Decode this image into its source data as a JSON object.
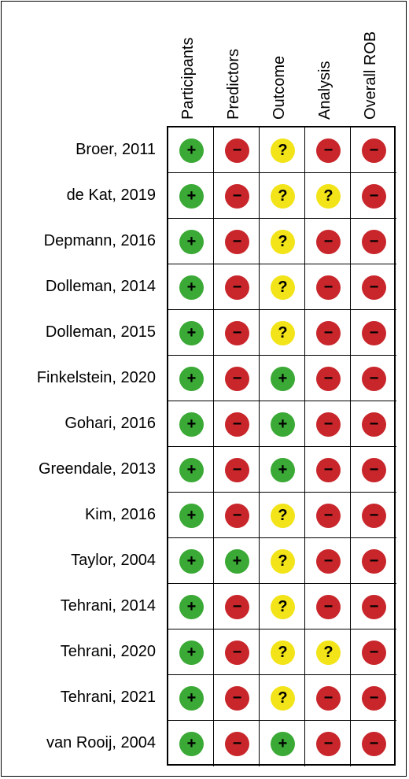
{
  "chart_data": {
    "type": "table",
    "columns": [
      "Participants",
      "Predictors",
      "Outcome",
      "Analysis",
      "Overall ROB"
    ],
    "legend_symbols": {
      "low": {
        "glyph": "+",
        "color": "#3aa935"
      },
      "high": {
        "glyph": "−",
        "color": "#c8262b"
      },
      "unclear": {
        "glyph": "?",
        "color": "#f2e418"
      }
    },
    "rows": [
      {
        "label": "Broer, 2011",
        "values": [
          "low",
          "high",
          "unclear",
          "high",
          "high"
        ]
      },
      {
        "label": "de Kat, 2019",
        "values": [
          "low",
          "high",
          "unclear",
          "unclear",
          "high"
        ]
      },
      {
        "label": "Depmann, 2016",
        "values": [
          "low",
          "high",
          "unclear",
          "high",
          "high"
        ]
      },
      {
        "label": "Dolleman, 2014",
        "values": [
          "low",
          "high",
          "unclear",
          "high",
          "high"
        ]
      },
      {
        "label": "Dolleman, 2015",
        "values": [
          "low",
          "high",
          "unclear",
          "high",
          "high"
        ]
      },
      {
        "label": "Finkelstein, 2020",
        "values": [
          "low",
          "high",
          "low",
          "high",
          "high"
        ]
      },
      {
        "label": "Gohari, 2016",
        "values": [
          "low",
          "high",
          "low",
          "high",
          "high"
        ]
      },
      {
        "label": "Greendale, 2013",
        "values": [
          "low",
          "high",
          "low",
          "high",
          "high"
        ]
      },
      {
        "label": "Kim, 2016",
        "values": [
          "low",
          "high",
          "unclear",
          "high",
          "high"
        ]
      },
      {
        "label": "Taylor, 2004",
        "values": [
          "low",
          "low",
          "unclear",
          "high",
          "high"
        ]
      },
      {
        "label": "Tehrani, 2014",
        "values": [
          "low",
          "high",
          "unclear",
          "high",
          "high"
        ]
      },
      {
        "label": "Tehrani, 2020",
        "values": [
          "low",
          "high",
          "unclear",
          "unclear",
          "high"
        ]
      },
      {
        "label": "Tehrani, 2021",
        "values": [
          "low",
          "high",
          "unclear",
          "high",
          "high"
        ]
      },
      {
        "label": "van Rooij, 2004",
        "values": [
          "low",
          "high",
          "low",
          "high",
          "high"
        ]
      }
    ]
  }
}
